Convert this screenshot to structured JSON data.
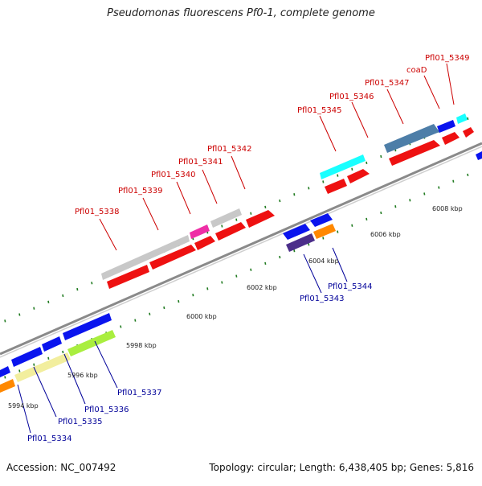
{
  "title": "Pseudomonas fluorescens Pf0-1, complete genome",
  "footer": {
    "accession": "Accession: NC_007492",
    "summary": "Topology: circular; Length: 6,438,405 bp; Genes: 5,816"
  },
  "colors": {
    "forward_label": "#cc0000",
    "reverse_label": "#000099",
    "axis": "#808080",
    "tick_mark": "#1f7a1f"
  },
  "scale": {
    "unit": "kbp",
    "labels": [
      {
        "text": "5994 kbp",
        "kbp": 5994
      },
      {
        "text": "5996 kbp",
        "kbp": 5996
      },
      {
        "text": "5998 kbp",
        "kbp": 5998
      },
      {
        "text": "6000 kbp",
        "kbp": 6000
      },
      {
        "text": "6002 kbp",
        "kbp": 6002
      },
      {
        "text": "6004 kbp",
        "kbp": 6004
      },
      {
        "text": "6006 kbp",
        "kbp": 6006
      },
      {
        "text": "6008 kbp",
        "kbp": 6008
      }
    ]
  },
  "forward_labels": [
    "Pfl01_5338",
    "Pfl01_5339",
    "Pfl01_5340",
    "Pfl01_5341",
    "Pfl01_5342",
    "Pfl01_5345",
    "Pfl01_5346",
    "Pfl01_5347",
    "coaD",
    "Pfl01_5349"
  ],
  "reverse_labels": [
    "Pfl01_5334",
    "Pfl01_5335",
    "Pfl01_5336",
    "Pfl01_5337",
    "Pfl01_5343",
    "Pfl01_5344"
  ]
}
